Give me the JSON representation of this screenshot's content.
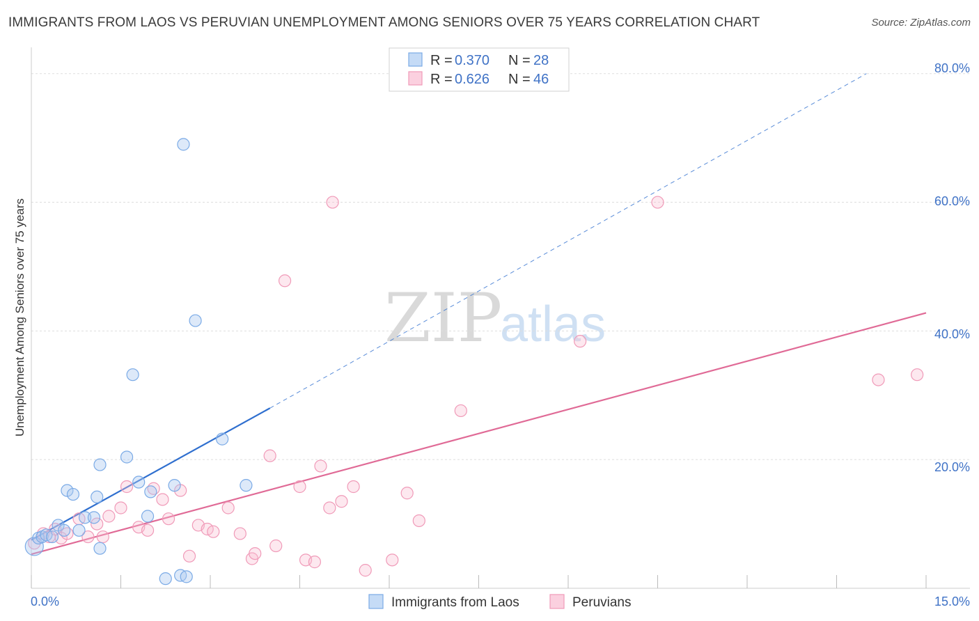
{
  "title": "IMMIGRANTS FROM LAOS VS PERUVIAN UNEMPLOYMENT AMONG SENIORS OVER 75 YEARS CORRELATION CHART",
  "source": "Source: ZipAtlas.com",
  "watermark": {
    "zip": "ZIP",
    "atlas": "atlas"
  },
  "colors": {
    "laos": "#7aaae6",
    "laos_line": "#2f6fcf",
    "peru": "#f09ab8",
    "peru_line": "#e06a96",
    "tick": "#3f72c6"
  },
  "legend": {
    "rows": [
      {
        "r_label": "R =",
        "r_value": "0.370",
        "n_label": "N =",
        "n_value": "28"
      },
      {
        "r_label": "R =",
        "r_value": "0.626",
        "n_label": "N =",
        "n_value": "46"
      }
    ]
  },
  "bottom_legend": {
    "laos": "Immigrants from Laos",
    "peru": "Peruvians"
  },
  "chart_data": {
    "type": "scatter",
    "title": "IMMIGRANTS FROM LAOS VS PERUVIAN UNEMPLOYMENT AMONG SENIORS OVER 75 YEARS CORRELATION CHART",
    "xlabel": "",
    "ylabel": "Unemployment Among Seniors over 75 years",
    "xlim": [
      0,
      15
    ],
    "ylim": [
      0,
      83
    ],
    "x_tick_labels": [
      "0.0%",
      "15.0%"
    ],
    "y_ticks": [
      20,
      40,
      60,
      80
    ],
    "y_tick_labels": [
      "20.0%",
      "40.0%",
      "60.0%",
      "80.0%"
    ],
    "series": [
      {
        "name": "Immigrants from Laos",
        "r": 0.37,
        "n": 28,
        "points": [
          [
            0.05,
            6.5
          ],
          [
            0.12,
            7.8
          ],
          [
            0.18,
            8.0
          ],
          [
            0.25,
            8.3
          ],
          [
            0.35,
            8.0
          ],
          [
            0.45,
            9.8
          ],
          [
            0.55,
            9.0
          ],
          [
            0.6,
            15.2
          ],
          [
            0.7,
            14.6
          ],
          [
            0.9,
            11.0
          ],
          [
            1.05,
            11.0
          ],
          [
            1.1,
            14.2
          ],
          [
            1.15,
            19.2
          ],
          [
            1.15,
            6.2
          ],
          [
            1.6,
            20.4
          ],
          [
            1.7,
            33.2
          ],
          [
            1.8,
            16.5
          ],
          [
            2.0,
            15.0
          ],
          [
            1.95,
            11.2
          ],
          [
            2.25,
            1.5
          ],
          [
            2.4,
            16.0
          ],
          [
            2.5,
            2.0
          ],
          [
            2.6,
            1.8
          ],
          [
            2.55,
            69.0
          ],
          [
            2.75,
            41.6
          ],
          [
            3.2,
            23.2
          ],
          [
            3.6,
            16.0
          ],
          [
            0.8,
            9.0
          ]
        ],
        "trend": {
          "x1": 0.0,
          "y1": 7.5,
          "x2": 4.0,
          "y2": 28.0,
          "dash_to_x": 14.0,
          "dash_to_y": 80.0
        }
      },
      {
        "name": "Peruvians",
        "r": 0.626,
        "n": 46,
        "points": [
          [
            0.05,
            7.0
          ],
          [
            0.2,
            8.5
          ],
          [
            0.3,
            8.0
          ],
          [
            0.4,
            9.2
          ],
          [
            0.5,
            7.8
          ],
          [
            0.6,
            8.5
          ],
          [
            0.8,
            10.8
          ],
          [
            0.95,
            8.0
          ],
          [
            1.1,
            10.0
          ],
          [
            1.2,
            8.0
          ],
          [
            1.3,
            11.2
          ],
          [
            1.5,
            12.5
          ],
          [
            1.6,
            15.8
          ],
          [
            1.8,
            9.5
          ],
          [
            1.95,
            9.0
          ],
          [
            2.05,
            15.5
          ],
          [
            2.2,
            13.8
          ],
          [
            2.3,
            10.8
          ],
          [
            2.5,
            15.2
          ],
          [
            2.65,
            5.0
          ],
          [
            2.8,
            9.8
          ],
          [
            2.95,
            9.2
          ],
          [
            3.05,
            8.8
          ],
          [
            3.3,
            12.5
          ],
          [
            3.5,
            8.5
          ],
          [
            3.7,
            4.6
          ],
          [
            3.75,
            5.4
          ],
          [
            4.0,
            20.6
          ],
          [
            4.1,
            6.6
          ],
          [
            4.25,
            47.8
          ],
          [
            4.5,
            15.8
          ],
          [
            4.6,
            4.4
          ],
          [
            4.75,
            4.1
          ],
          [
            4.85,
            19.0
          ],
          [
            5.0,
            12.5
          ],
          [
            5.05,
            60.0
          ],
          [
            5.2,
            13.5
          ],
          [
            5.4,
            15.8
          ],
          [
            5.6,
            2.8
          ],
          [
            6.05,
            4.4
          ],
          [
            6.3,
            14.8
          ],
          [
            6.5,
            10.5
          ],
          [
            7.2,
            27.6
          ],
          [
            9.2,
            38.4
          ],
          [
            14.2,
            32.4
          ],
          [
            14.85,
            33.2
          ]
        ],
        "trend": {
          "x1": 0.0,
          "y1": 5.3,
          "x2": 15.0,
          "y2": 42.8
        }
      }
    ],
    "extra_points_peru_high": [
      [
        10.5,
        60.0
      ]
    ]
  }
}
